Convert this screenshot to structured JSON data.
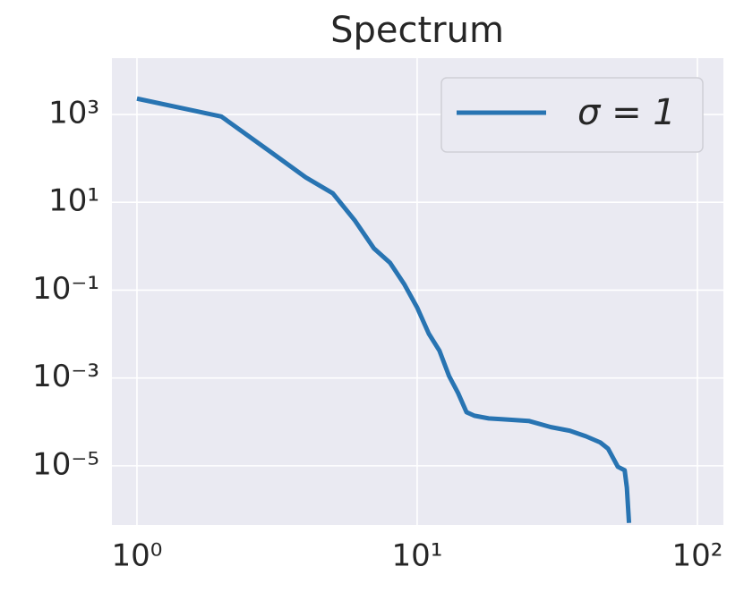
{
  "chart_data": {
    "type": "line",
    "title": "Spectrum",
    "xscale": "log",
    "yscale": "log",
    "xlim": [
      0.814,
      123.8
    ],
    "ylim": [
      4.5e-07,
      19200
    ],
    "xticks": [
      {
        "value": 1,
        "label": "10⁰"
      },
      {
        "value": 10,
        "label": "10¹"
      },
      {
        "value": 100,
        "label": "10²"
      }
    ],
    "yticks": [
      {
        "value": 1e-05,
        "label": "10⁻⁵"
      },
      {
        "value": 0.001,
        "label": "10⁻³"
      },
      {
        "value": 0.1,
        "label": "10⁻¹"
      },
      {
        "value": 10,
        "label": "10¹"
      },
      {
        "value": 1000,
        "label": "10³"
      }
    ],
    "grid": true,
    "legend": "upper right",
    "x": [
      1,
      2,
      3,
      4,
      5,
      6,
      7,
      8,
      9,
      10,
      11,
      12,
      13,
      14,
      15,
      16,
      18,
      20,
      25,
      30,
      35,
      40,
      45,
      48,
      50,
      52,
      55,
      56,
      57
    ],
    "series": [
      {
        "name": "σ = 1",
        "color": "#2874b2",
        "values": [
          2300,
          900,
          140,
          37,
          16,
          3.8,
          0.9,
          0.42,
          0.135,
          0.04,
          0.0102,
          0.0042,
          0.0011,
          0.00045,
          0.000166,
          0.000138,
          0.00012,
          0.000115,
          0.000105,
          7.6e-05,
          6.3e-05,
          4.7e-05,
          3.4e-05,
          2.45e-05,
          1.51e-05,
          9.5e-06,
          7.9e-06,
          3.2e-06,
          5e-07
        ]
      }
    ]
  }
}
